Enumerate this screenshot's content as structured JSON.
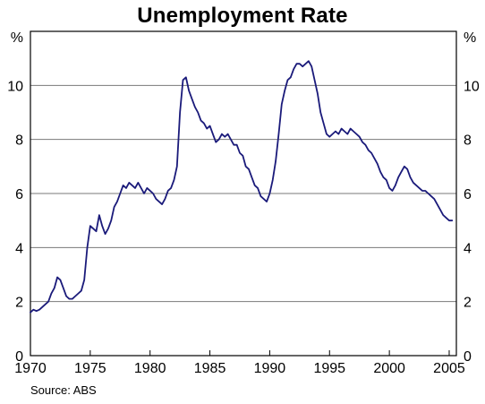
{
  "chart_data": {
    "type": "line",
    "title": "Unemployment Rate",
    "source": "Source: ABS",
    "y_unit_left": "%",
    "y_unit_right": "%",
    "xlim": [
      1970,
      2005.6
    ],
    "ylim": [
      0,
      12
    ],
    "x_ticks": [
      1970,
      1975,
      1980,
      1985,
      1990,
      1995,
      2000,
      2005
    ],
    "y_ticks": [
      0,
      2,
      4,
      6,
      8,
      10
    ],
    "grid": "horizontal",
    "line_color": "#1a1a7a",
    "series": [
      {
        "x": [
          1970.0,
          1970.25,
          1970.5,
          1970.75,
          1971.0,
          1971.25,
          1971.5,
          1971.75,
          1972.0,
          1972.25,
          1972.5,
          1972.75,
          1973.0,
          1973.25,
          1973.5,
          1973.75,
          1974.0,
          1974.25,
          1974.5,
          1974.75,
          1975.0,
          1975.25,
          1975.5,
          1975.75,
          1976.0,
          1976.25,
          1976.5,
          1976.75,
          1977.0,
          1977.25,
          1977.5,
          1977.75,
          1978.0,
          1978.25,
          1978.5,
          1978.75,
          1979.0,
          1979.25,
          1979.5,
          1979.75,
          1980.0,
          1980.25,
          1980.5,
          1980.75,
          1981.0,
          1981.25,
          1981.5,
          1981.75,
          1982.0,
          1982.25,
          1982.5,
          1982.75,
          1983.0,
          1983.25,
          1983.5,
          1983.75,
          1984.0,
          1984.25,
          1984.5,
          1984.75,
          1985.0,
          1985.25,
          1985.5,
          1985.75,
          1986.0,
          1986.25,
          1986.5,
          1986.75,
          1987.0,
          1987.25,
          1987.5,
          1987.75,
          1988.0,
          1988.25,
          1988.5,
          1988.75,
          1989.0,
          1989.25,
          1989.5,
          1989.75,
          1990.0,
          1990.25,
          1990.5,
          1990.75,
          1991.0,
          1991.25,
          1991.5,
          1991.75,
          1992.0,
          1992.25,
          1992.5,
          1992.75,
          1993.0,
          1993.25,
          1993.5,
          1993.75,
          1994.0,
          1994.25,
          1994.5,
          1994.75,
          1995.0,
          1995.25,
          1995.5,
          1995.75,
          1996.0,
          1996.25,
          1996.5,
          1996.75,
          1997.0,
          1997.25,
          1997.5,
          1997.75,
          1998.0,
          1998.25,
          1998.5,
          1998.75,
          1999.0,
          1999.25,
          1999.5,
          1999.75,
          2000.0,
          2000.25,
          2000.5,
          2000.75,
          2001.0,
          2001.25,
          2001.5,
          2001.75,
          2002.0,
          2002.25,
          2002.5,
          2002.75,
          2003.0,
          2003.25,
          2003.5,
          2003.75,
          2004.0,
          2004.25,
          2004.5,
          2004.75,
          2005.0,
          2005.25
        ],
        "y": [
          1.6,
          1.7,
          1.65,
          1.7,
          1.8,
          1.9,
          2.0,
          2.3,
          2.5,
          2.9,
          2.8,
          2.5,
          2.2,
          2.1,
          2.1,
          2.2,
          2.3,
          2.4,
          2.8,
          4.0,
          4.8,
          4.7,
          4.6,
          5.2,
          4.8,
          4.5,
          4.7,
          5.0,
          5.5,
          5.7,
          6.0,
          6.3,
          6.2,
          6.4,
          6.3,
          6.2,
          6.4,
          6.2,
          6.0,
          6.2,
          6.1,
          6.0,
          5.8,
          5.7,
          5.6,
          5.8,
          6.1,
          6.2,
          6.5,
          7.0,
          9.0,
          10.2,
          10.3,
          9.8,
          9.5,
          9.2,
          9.0,
          8.7,
          8.6,
          8.4,
          8.5,
          8.2,
          7.9,
          8.0,
          8.2,
          8.1,
          8.2,
          8.0,
          7.8,
          7.8,
          7.5,
          7.4,
          7.0,
          6.9,
          6.6,
          6.3,
          6.2,
          5.9,
          5.8,
          5.7,
          6.0,
          6.5,
          7.2,
          8.2,
          9.3,
          9.8,
          10.2,
          10.3,
          10.6,
          10.8,
          10.8,
          10.7,
          10.8,
          10.9,
          10.7,
          10.2,
          9.7,
          9.0,
          8.6,
          8.2,
          8.1,
          8.2,
          8.3,
          8.2,
          8.4,
          8.3,
          8.2,
          8.4,
          8.3,
          8.2,
          8.1,
          7.9,
          7.8,
          7.6,
          7.5,
          7.3,
          7.1,
          6.8,
          6.6,
          6.5,
          6.2,
          6.1,
          6.3,
          6.6,
          6.8,
          7.0,
          6.9,
          6.6,
          6.4,
          6.3,
          6.2,
          6.1,
          6.1,
          6.0,
          5.9,
          5.8,
          5.6,
          5.4,
          5.2,
          5.1,
          5.0,
          5.0
        ]
      }
    ]
  }
}
